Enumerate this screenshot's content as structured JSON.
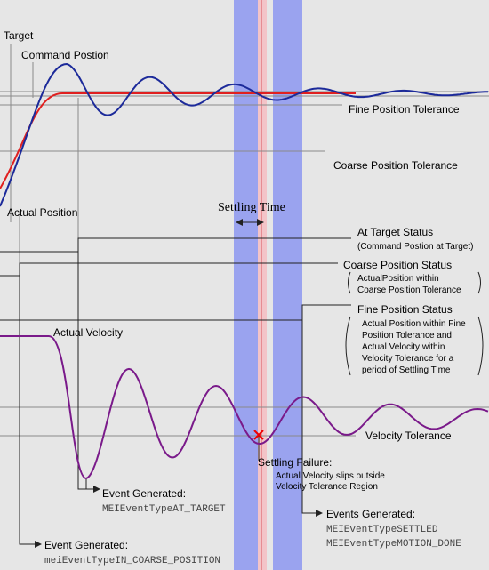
{
  "labels": {
    "target": "Target",
    "command_position": "Command Postion",
    "actual_position": "Actual Position",
    "fine_tolerance": "Fine Position Tolerance",
    "coarse_tolerance": "Coarse Position Tolerance",
    "settling_time": "Settling Time",
    "actual_velocity": "Actual Velocity",
    "velocity_tolerance": "Velocity Tolerance"
  },
  "statuses": [
    {
      "title": "At Target Status",
      "notes": [
        "(Command Postion at Target)"
      ]
    },
    {
      "title": "Coarse Position Status",
      "notes": [
        "ActualPosition within",
        "Coarse Position Tolerance"
      ]
    },
    {
      "title": "Fine Position Status",
      "notes": [
        "Actual Position within Fine",
        "Position Tolerance and",
        "Actual Velocity within",
        "Velocity Tolerance for a",
        "period of Settling Time"
      ]
    }
  ],
  "settling_failure": {
    "title": "Settling Failure:",
    "notes": [
      "Actual Velocity slips outside",
      "Velocity Tolerance Region"
    ]
  },
  "events": [
    {
      "title": "Event Generated:",
      "codes": [
        "MEIEventTypeAT_TARGET"
      ]
    },
    {
      "title": "Events Generated:",
      "codes": [
        "MEIEventTypeSETTLED",
        "MEIEventTypeMOTION_DONE"
      ]
    },
    {
      "title": "Event Generated:",
      "codes": [
        "meiEventTypeIN_COARSE_POSITION"
      ]
    }
  ]
}
